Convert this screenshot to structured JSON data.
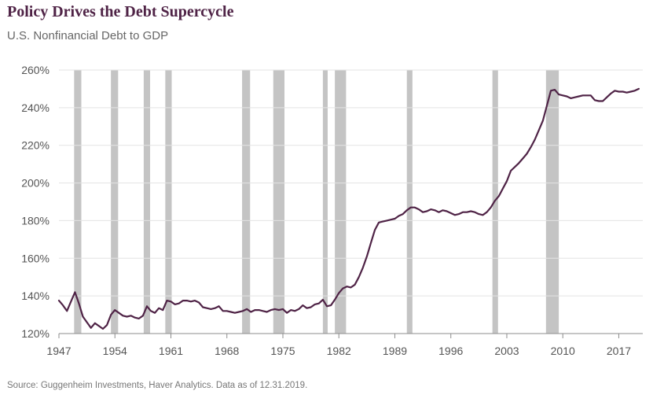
{
  "header": {
    "title": "Policy Drives the Debt Supercycle",
    "subtitle": "U.S. Nonfinancial Debt to GDP"
  },
  "footer": {
    "source": "Source: Guggenheim Investments, Haver Analytics. Data as of 12.31.2019."
  },
  "chart_data": {
    "type": "line",
    "title": "Policy Drives the Debt Supercycle",
    "subtitle": "U.S. Nonfinancial Debt to GDP",
    "xlabel": "",
    "ylabel": "",
    "xlim": [
      1947,
      2020
    ],
    "ylim": [
      120,
      260
    ],
    "x_ticks": [
      1947,
      1954,
      1961,
      1968,
      1975,
      1982,
      1989,
      1996,
      2003,
      2010,
      2017
    ],
    "x_tick_labels": [
      "1947",
      "1954",
      "1961",
      "1968",
      "1975",
      "1982",
      "1989",
      "1996",
      "2003",
      "2010",
      "2017"
    ],
    "y_ticks": [
      120,
      140,
      160,
      180,
      200,
      220,
      240,
      260
    ],
    "y_tick_labels": [
      "120%",
      "140%",
      "160%",
      "180%",
      "200%",
      "220%",
      "240%",
      "260%"
    ],
    "grid": "horizontal",
    "legend": "none",
    "colors": {
      "line": "#4f2346",
      "recession": "#c4c4c4",
      "grid": "#e3e3e3",
      "axis": "#8c8c8c"
    },
    "recessions": [
      [
        1948.9,
        1949.8
      ],
      [
        1953.5,
        1954.4
      ],
      [
        1957.6,
        1958.4
      ],
      [
        1960.3,
        1961.1
      ],
      [
        1969.9,
        1970.9
      ],
      [
        1973.8,
        1975.2
      ],
      [
        1980.0,
        1980.6
      ],
      [
        1981.5,
        1982.9
      ],
      [
        1990.5,
        1991.2
      ],
      [
        2001.2,
        2001.9
      ],
      [
        2007.9,
        2009.5
      ]
    ],
    "series": [
      {
        "x": [
          1947.0,
          1947.5,
          1948.0,
          1948.5,
          1949.0,
          1949.5,
          1950.0,
          1950.5,
          1951.0,
          1951.5,
          1952.0,
          1952.5,
          1953.0,
          1953.5,
          1954.0,
          1954.5,
          1955.0,
          1955.5,
          1956.0,
          1956.5,
          1957.0,
          1957.5,
          1958.0,
          1958.5,
          1959.0,
          1959.5,
          1960.0,
          1960.5,
          1961.0,
          1961.5,
          1962.0,
          1962.5,
          1963.0,
          1963.5,
          1964.0,
          1964.5,
          1965.0,
          1965.5,
          1966.0,
          1966.5,
          1967.0,
          1967.5,
          1968.0,
          1968.5,
          1969.0,
          1969.5,
          1970.0,
          1970.5,
          1971.0,
          1971.5,
          1972.0,
          1972.5,
          1973.0,
          1973.5,
          1974.0,
          1974.5,
          1975.0,
          1975.5,
          1976.0,
          1976.5,
          1977.0,
          1977.5,
          1978.0,
          1978.5,
          1979.0,
          1979.5,
          1980.0,
          1980.5,
          1981.0,
          1981.5,
          1982.0,
          1982.5,
          1983.0,
          1983.5,
          1984.0,
          1984.5,
          1985.0,
          1985.5,
          1986.0,
          1986.5,
          1987.0,
          1987.5,
          1988.0,
          1988.5,
          1989.0,
          1989.5,
          1990.0,
          1990.5,
          1991.0,
          1991.5,
          1992.0,
          1992.5,
          1993.0,
          1993.5,
          1994.0,
          1994.5,
          1995.0,
          1995.5,
          1996.0,
          1996.5,
          1997.0,
          1997.5,
          1998.0,
          1998.5,
          1999.0,
          1999.5,
          2000.0,
          2000.5,
          2001.0,
          2001.5,
          2002.0,
          2002.5,
          2003.0,
          2003.5,
          2004.0,
          2004.5,
          2005.0,
          2005.5,
          2006.0,
          2006.5,
          2007.0,
          2007.5,
          2008.0,
          2008.5,
          2009.0,
          2009.5,
          2010.0,
          2010.5,
          2011.0,
          2011.5,
          2012.0,
          2012.5,
          2013.0,
          2013.5,
          2014.0,
          2014.5,
          2015.0,
          2015.5,
          2016.0,
          2016.5,
          2017.0,
          2017.5,
          2018.0,
          2018.5,
          2019.0,
          2019.5
        ],
        "y": [
          137.5,
          135.0,
          132.0,
          137.0,
          142.0,
          136.0,
          129.0,
          126.0,
          123.0,
          125.5,
          124.0,
          122.5,
          124.5,
          130.0,
          132.5,
          131.0,
          129.5,
          129.0,
          129.5,
          128.5,
          128.0,
          129.5,
          134.5,
          132.0,
          131.0,
          133.5,
          132.5,
          137.5,
          137.0,
          135.5,
          136.0,
          137.5,
          137.5,
          137.0,
          137.5,
          136.5,
          134.0,
          133.5,
          133.0,
          133.5,
          134.5,
          132.0,
          132.0,
          131.5,
          131.0,
          131.5,
          132.0,
          133.0,
          131.5,
          132.5,
          132.5,
          132.0,
          131.5,
          132.5,
          133.0,
          132.5,
          133.0,
          131.0,
          132.5,
          132.0,
          133.0,
          135.0,
          133.5,
          134.0,
          135.5,
          136.0,
          138.0,
          134.5,
          135.0,
          138.0,
          141.5,
          144.0,
          145.0,
          144.5,
          146.0,
          150.0,
          155.0,
          161.0,
          168.0,
          175.0,
          179.0,
          179.5,
          180.0,
          180.5,
          181.0,
          182.5,
          183.5,
          185.5,
          187.0,
          187.0,
          186.0,
          184.5,
          185.0,
          186.0,
          185.5,
          184.5,
          185.5,
          185.0,
          184.0,
          183.0,
          183.5,
          184.5,
          184.5,
          185.0,
          184.5,
          183.5,
          183.0,
          184.5,
          187.0,
          190.5,
          193.0,
          197.0,
          201.0,
          206.5,
          208.5,
          210.5,
          213.0,
          215.5,
          219.0,
          223.0,
          228.0,
          233.0,
          241.0,
          249.0,
          249.5,
          247.0,
          246.5,
          246.0,
          245.0,
          245.5,
          246.0,
          246.5,
          246.5,
          246.5,
          244.0,
          243.5,
          243.5,
          245.5,
          247.5,
          249.0,
          248.5,
          248.5,
          248.0,
          248.5,
          249.0,
          250.0
        ]
      }
    ]
  }
}
